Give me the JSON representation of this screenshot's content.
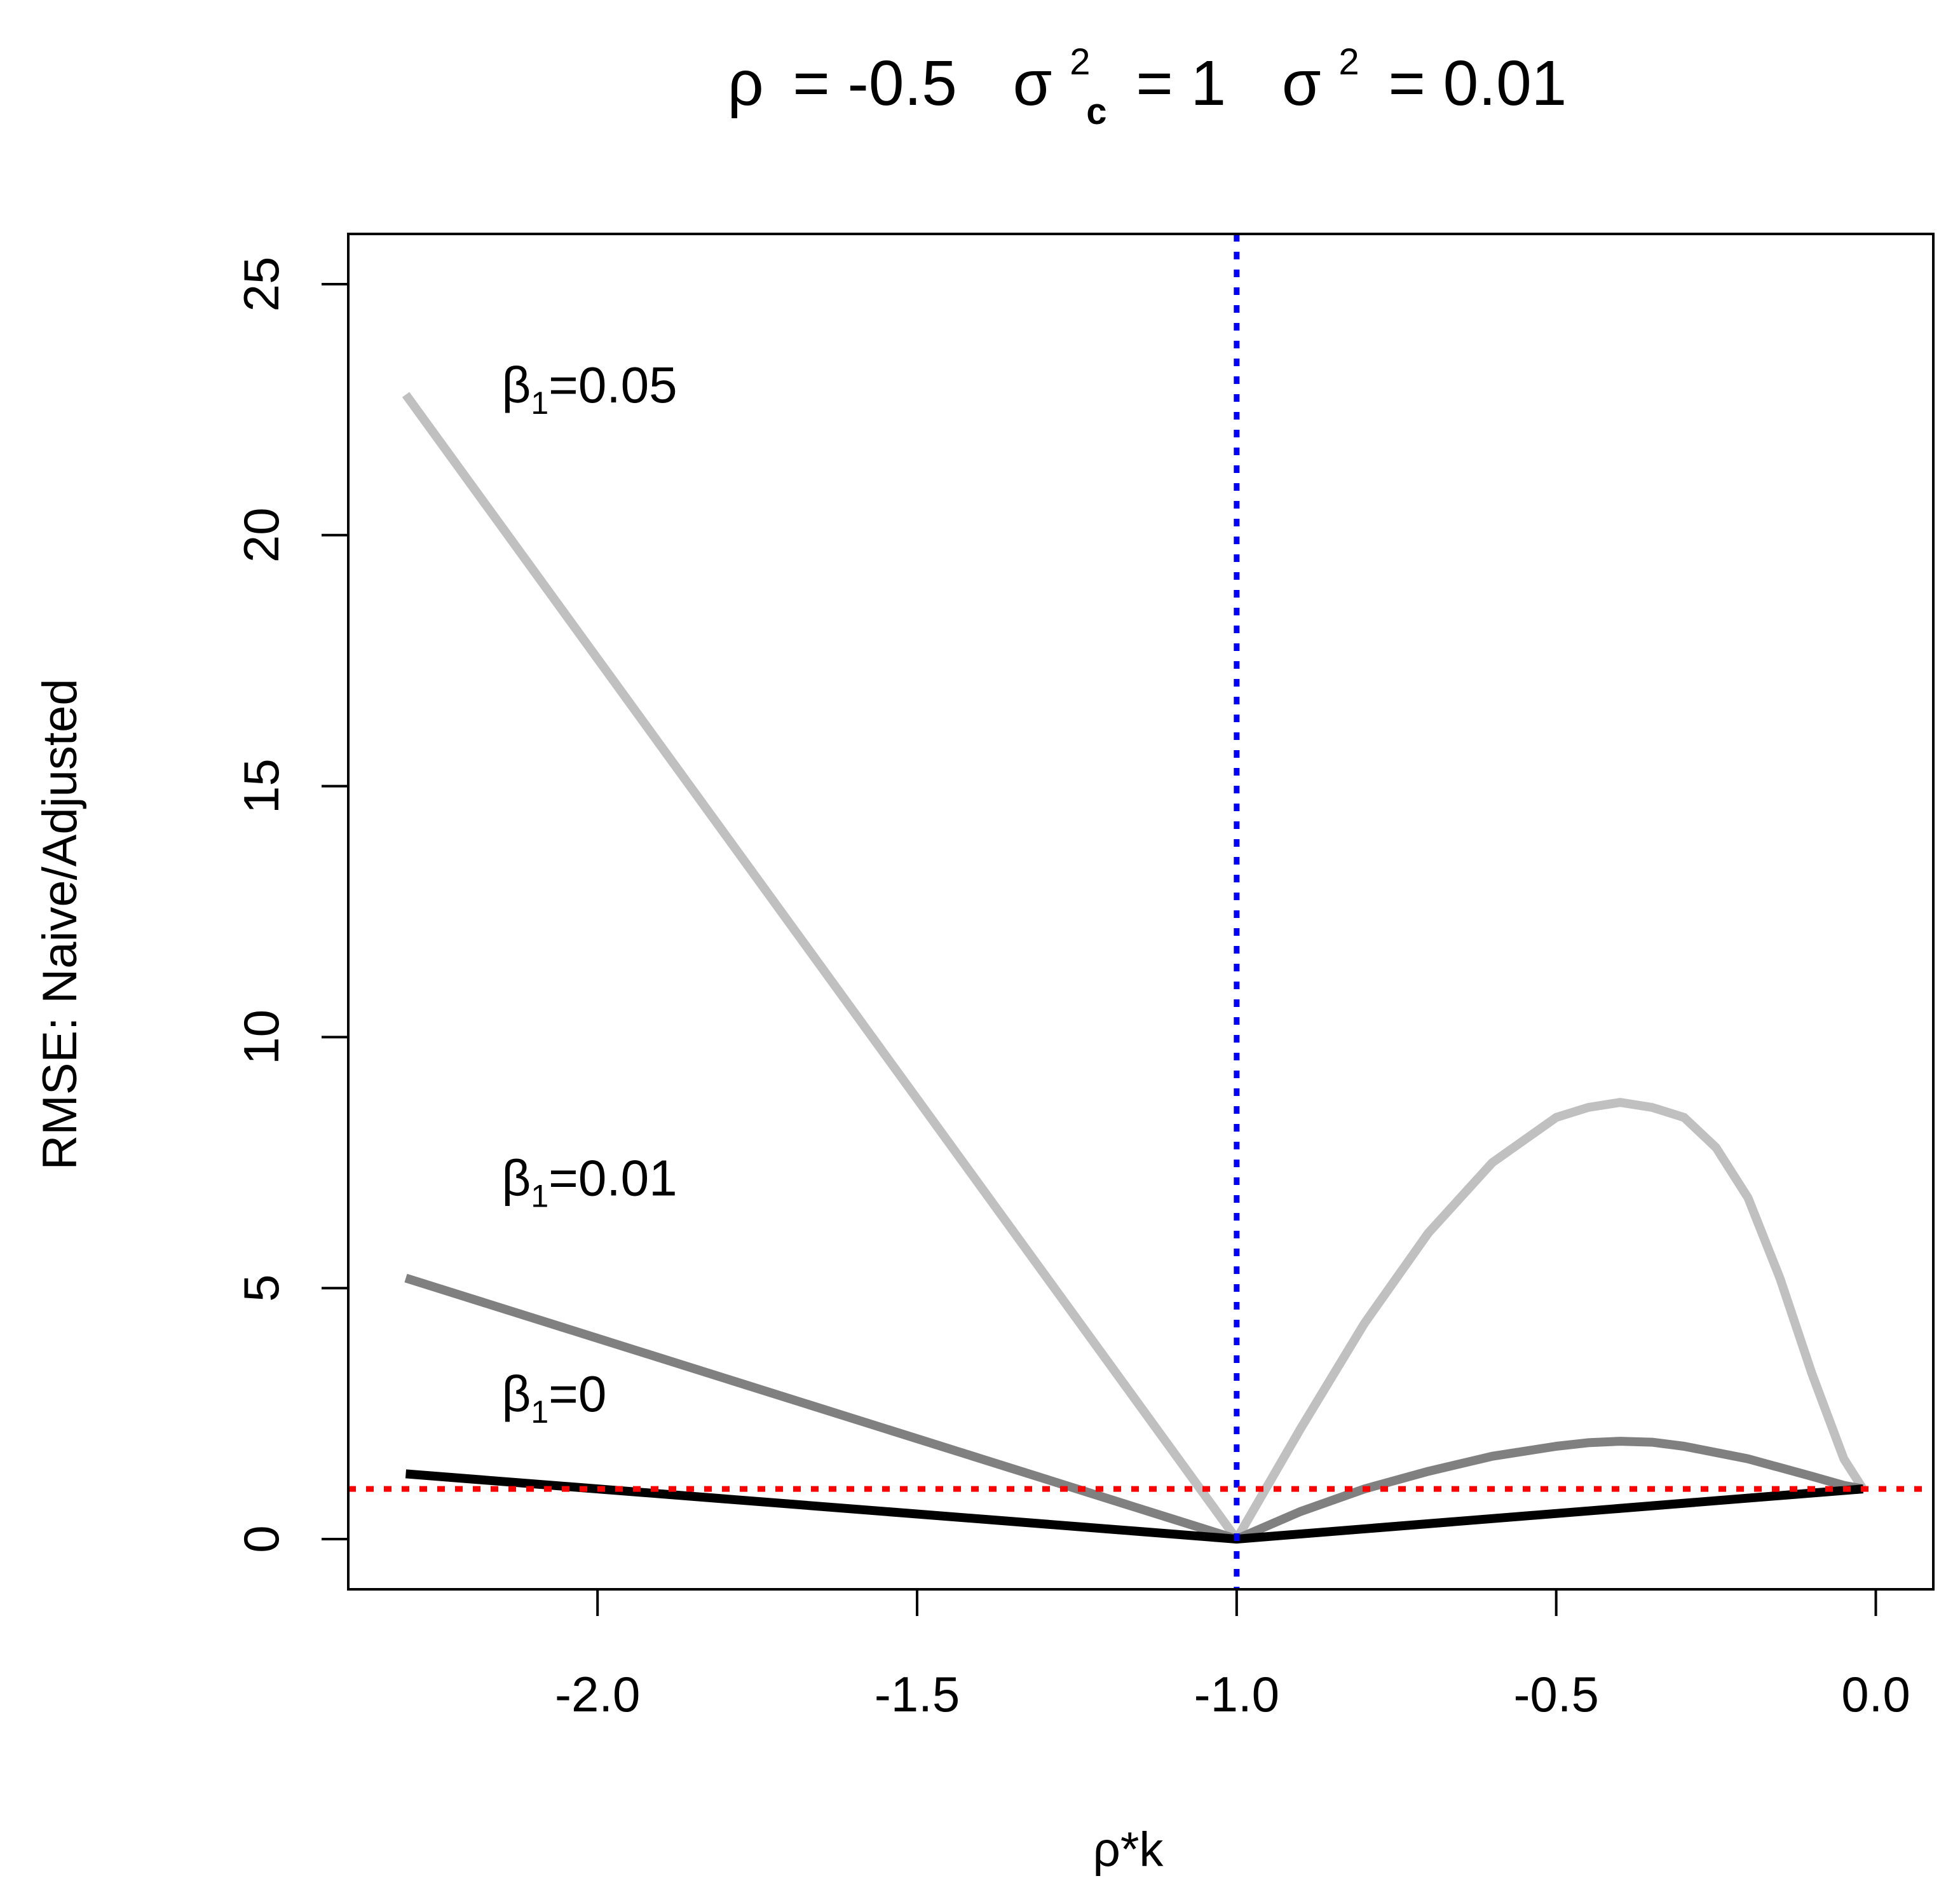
{
  "chart_data": {
    "type": "line",
    "title": {
      "rho_symbol": "ρ",
      "rho_value": "= -0.5",
      "sigma_symbol": "σ",
      "sigma_c_sup": "2",
      "sigma_c_sub": "c",
      "sigma_c_value": "= 1",
      "sigma_sup": "2",
      "sigma_value": "= 0.01"
    },
    "xlabel": "ρ*k",
    "ylabel": "RMSE: Naive/Adjusted",
    "xlim": [
      -2.39,
      0.09
    ],
    "ylim": [
      -1.0,
      26.0
    ],
    "x_ticks": [
      -2.0,
      -1.5,
      -1.0,
      -0.5,
      0.0
    ],
    "x_tick_labels": [
      "-2.0",
      "-1.5",
      "-1.0",
      "-0.5",
      "0.0"
    ],
    "y_ticks": [
      0,
      5,
      10,
      15,
      20,
      25
    ],
    "y_tick_labels": [
      "0",
      "5",
      "10",
      "15",
      "20",
      "25"
    ],
    "grid": false,
    "series": [
      {
        "name": "β1=0.05",
        "color": "#c0c0c0",
        "x": [
          -2.3,
          -1.0,
          -0.9,
          -0.8,
          -0.7,
          -0.6,
          -0.5,
          -0.45,
          -0.4,
          -0.35,
          -0.3,
          -0.25,
          -0.2,
          -0.15,
          -0.1,
          -0.05,
          -0.02
        ],
        "y": [
          22.8,
          0.0,
          2.2,
          4.3,
          6.1,
          7.5,
          8.4,
          8.6,
          8.7,
          8.6,
          8.4,
          7.8,
          6.8,
          5.2,
          3.3,
          1.6,
          1.0
        ]
      },
      {
        "name": "β1=0.01",
        "color": "#808080",
        "x": [
          -2.3,
          -1.0,
          -0.9,
          -0.8,
          -0.7,
          -0.6,
          -0.5,
          -0.45,
          -0.4,
          -0.35,
          -0.3,
          -0.2,
          -0.1,
          -0.05,
          -0.02
        ],
        "y": [
          5.2,
          0.0,
          0.55,
          1.0,
          1.35,
          1.65,
          1.85,
          1.92,
          1.95,
          1.93,
          1.85,
          1.6,
          1.25,
          1.07,
          1.0
        ]
      },
      {
        "name": "β1=0",
        "color": "#000000",
        "x": [
          -2.3,
          -1.0,
          -0.02
        ],
        "y": [
          1.3,
          0.0,
          1.0
        ]
      }
    ],
    "reference_lines": [
      {
        "orientation": "vertical",
        "value": -1.0,
        "color": "#0000ff",
        "style": "dotted"
      },
      {
        "orientation": "horizontal",
        "value": 1.0,
        "color": "#ff0000",
        "style": "dotted"
      }
    ],
    "annotations": [
      {
        "greek": "β",
        "sub": "1",
        "text": "=0.05",
        "x": -2.15,
        "y": 23.0
      },
      {
        "greek": "β",
        "sub": "1",
        "text": "=0.01",
        "x": -2.15,
        "y": 7.2
      },
      {
        "greek": "β",
        "sub": "1",
        "text": "=0",
        "x": -2.15,
        "y": 2.9
      }
    ]
  }
}
